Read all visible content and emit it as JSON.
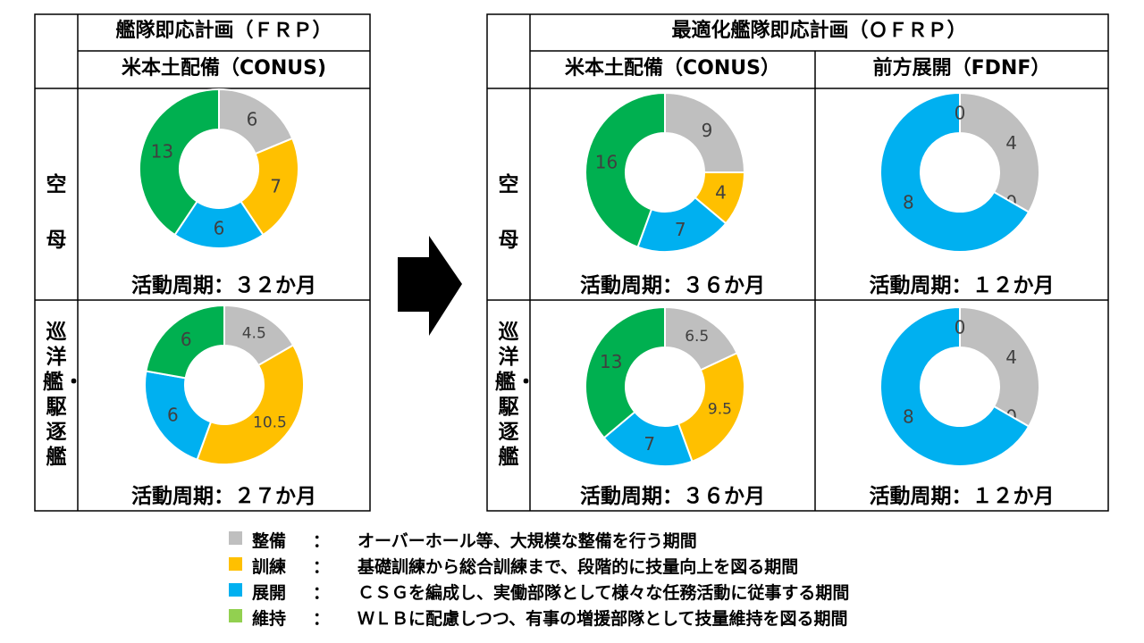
{
  "colors": {
    "maintenance": "#BFBFBF",
    "training": "#FFC000",
    "deployment": "#00B0F0",
    "sustainment": "#00B050",
    "legend_sustainment": "#92D050",
    "label_text": "#404040"
  },
  "frp": {
    "title": "艦隊即応計画（ＦＲＰ）",
    "col_conus": "米本土配備（CONUS)"
  },
  "ofrp": {
    "title": "最適化艦隊即応計画（ＯＦＲＰ）",
    "col_conus": "米本土配備（CONUS）",
    "col_fdnf": "前方展開（FDNF）"
  },
  "rows": {
    "carrier": "空母",
    "cruiser": "巡洋艦・駆逐艦"
  },
  "chart_data": [
    {
      "type": "pie",
      "panel": "FRP CONUS 空母",
      "categories": [
        "整備",
        "訓練",
        "展開",
        "維持"
      ],
      "values": [
        6,
        7,
        6,
        13
      ],
      "labels": [
        "6",
        "7",
        "6",
        "13"
      ],
      "caption": "活動周期：３２か月"
    },
    {
      "type": "pie",
      "panel": "FRP CONUS 巡洋艦・駆逐艦",
      "categories": [
        "整備",
        "訓練",
        "展開",
        "維持"
      ],
      "values": [
        4.5,
        10.5,
        6,
        6
      ],
      "labels": [
        "4.5",
        "10.5",
        "6",
        "6"
      ],
      "caption": "活動周期：２７か月"
    },
    {
      "type": "pie",
      "panel": "OFRP CONUS 空母",
      "categories": [
        "整備",
        "訓練",
        "展開",
        "維持"
      ],
      "values": [
        9,
        4,
        7,
        16
      ],
      "labels": [
        "9",
        "4",
        "7",
        "16"
      ],
      "caption": "活動周期：３６か月"
    },
    {
      "type": "pie",
      "panel": "OFRP FDNF 空母",
      "categories": [
        "整備",
        "訓練",
        "展開",
        "維持"
      ],
      "values": [
        4,
        0,
        8,
        0
      ],
      "labels": [
        "4",
        "0",
        "8",
        "0"
      ],
      "caption": "活動周期：１２か月"
    },
    {
      "type": "pie",
      "panel": "OFRP CONUS 巡洋艦・駆逐艦",
      "categories": [
        "整備",
        "訓練",
        "展開",
        "維持"
      ],
      "values": [
        6.5,
        9.5,
        7,
        13
      ],
      "labels": [
        "6.5",
        "9.5",
        "7",
        "13"
      ],
      "caption": "活動周期：３６か月"
    },
    {
      "type": "pie",
      "panel": "OFRP FDNF 巡洋艦・駆逐艦",
      "categories": [
        "整備",
        "訓練",
        "展開",
        "維持"
      ],
      "values": [
        4,
        0,
        8,
        0
      ],
      "labels": [
        "4",
        "0",
        "8",
        "0"
      ],
      "caption": "活動周期：１２か月"
    }
  ],
  "legend": [
    {
      "name": "整備",
      "sep": "：",
      "desc": "オーバーホール等、大規模な整備を行う期間"
    },
    {
      "name": "訓練",
      "sep": "：",
      "desc": "基礎訓練から総合訓練まで、段階的に技量向上を図る期間"
    },
    {
      "name": "展開",
      "sep": "：",
      "desc": "ＣＳＧを編成し、実働部隊として様々な任務活動に従事する期間"
    },
    {
      "name": "維持",
      "sep": "：",
      "desc": "ＷＬＢに配慮しつつ、有事の増援部隊として技量維持を図る期間"
    }
  ]
}
